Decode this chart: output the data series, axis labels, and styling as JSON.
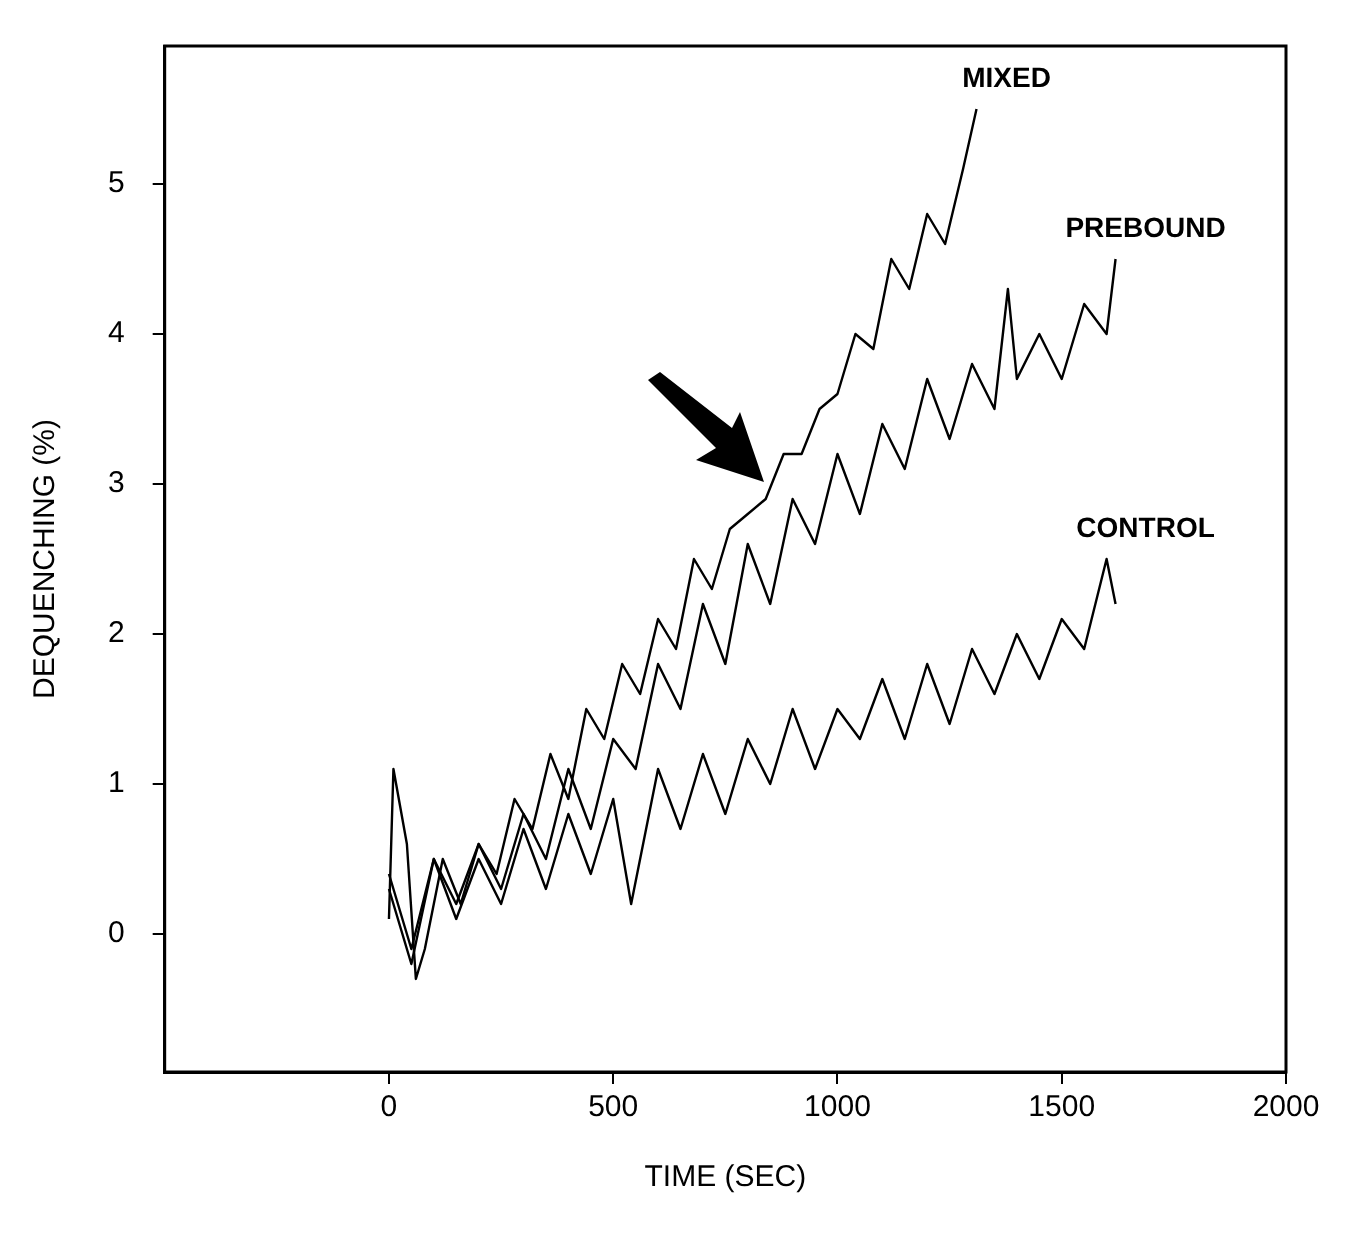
{
  "chart_data": {
    "type": "line",
    "xlabel": "TIME (SEC)",
    "ylabel": "DEQUENCHING (%)",
    "xlim": [
      -500,
      2000
    ],
    "xticks": [
      0,
      500,
      1000,
      1500,
      2000
    ],
    "ylim": [
      -0.92,
      5.92
    ],
    "yticks": [
      0,
      1,
      2,
      3,
      4,
      5
    ],
    "grid": false,
    "legend": false,
    "marker": "none",
    "line_style": "solid",
    "series": [
      {
        "name": "MIXED",
        "color": "#000000",
        "x": [
          0,
          10,
          40,
          60,
          80,
          120,
          160,
          200,
          240,
          280,
          320,
          360,
          400,
          440,
          480,
          520,
          560,
          600,
          640,
          680,
          720,
          760,
          800,
          840,
          880,
          920,
          960,
          1000,
          1040,
          1080,
          1120,
          1160,
          1200,
          1240,
          1280,
          1310
        ],
        "values": [
          0.1,
          1.1,
          0.6,
          -0.3,
          -0.1,
          0.5,
          0.2,
          0.6,
          0.4,
          0.9,
          0.7,
          1.2,
          0.9,
          1.5,
          1.3,
          1.8,
          1.6,
          2.1,
          1.9,
          2.5,
          2.3,
          2.7,
          2.8,
          2.9,
          3.2,
          3.2,
          3.5,
          3.6,
          4.0,
          3.9,
          4.5,
          4.3,
          4.8,
          4.6,
          5.1,
          5.5
        ]
      },
      {
        "name": "PREBOUND",
        "color": "#000000",
        "x": [
          0,
          50,
          100,
          150,
          200,
          250,
          300,
          350,
          400,
          450,
          500,
          550,
          600,
          650,
          700,
          750,
          800,
          850,
          900,
          950,
          1000,
          1050,
          1100,
          1150,
          1200,
          1250,
          1300,
          1350,
          1380,
          1400,
          1450,
          1500,
          1550,
          1600,
          1620
        ],
        "values": [
          0.3,
          -0.2,
          0.5,
          0.2,
          0.6,
          0.3,
          0.8,
          0.5,
          1.1,
          0.7,
          1.3,
          1.1,
          1.8,
          1.5,
          2.2,
          1.8,
          2.6,
          2.2,
          2.9,
          2.6,
          3.2,
          2.8,
          3.4,
          3.1,
          3.7,
          3.3,
          3.8,
          3.5,
          4.3,
          3.7,
          4.0,
          3.7,
          4.2,
          4.0,
          4.5
        ]
      },
      {
        "name": "CONTROL",
        "color": "#000000",
        "x": [
          0,
          50,
          100,
          150,
          200,
          250,
          300,
          350,
          400,
          450,
          500,
          540,
          600,
          650,
          700,
          750,
          800,
          850,
          900,
          950,
          1000,
          1050,
          1100,
          1150,
          1200,
          1250,
          1300,
          1350,
          1400,
          1450,
          1500,
          1550,
          1600,
          1620
        ],
        "values": [
          0.4,
          -0.1,
          0.5,
          0.1,
          0.5,
          0.2,
          0.7,
          0.3,
          0.8,
          0.4,
          0.9,
          0.2,
          1.1,
          0.7,
          1.2,
          0.8,
          1.3,
          1.0,
          1.5,
          1.1,
          1.5,
          1.3,
          1.7,
          1.3,
          1.8,
          1.4,
          1.9,
          1.6,
          2.0,
          1.7,
          2.1,
          1.9,
          2.5,
          2.2
        ]
      }
    ]
  }
}
